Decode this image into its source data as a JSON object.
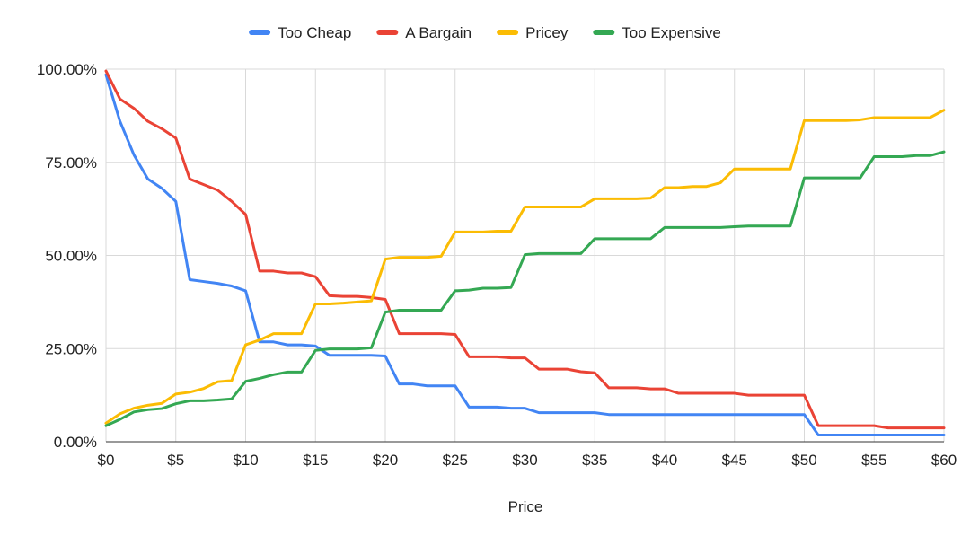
{
  "chart_data": {
    "type": "line",
    "title": "",
    "xlabel": "Price",
    "ylabel": "",
    "xlim": [
      0,
      60
    ],
    "ylim": [
      0,
      100
    ],
    "grid": true,
    "legend_position": "top-center",
    "x_ticks": [
      {
        "value": 0,
        "label": "$0"
      },
      {
        "value": 5,
        "label": "$5"
      },
      {
        "value": 10,
        "label": "$10"
      },
      {
        "value": 15,
        "label": "$15"
      },
      {
        "value": 20,
        "label": "$20"
      },
      {
        "value": 25,
        "label": "$25"
      },
      {
        "value": 30,
        "label": "$30"
      },
      {
        "value": 35,
        "label": "$35"
      },
      {
        "value": 40,
        "label": "$40"
      },
      {
        "value": 45,
        "label": "$45"
      },
      {
        "value": 50,
        "label": "$50"
      },
      {
        "value": 55,
        "label": "$55"
      },
      {
        "value": 60,
        "label": "$60"
      }
    ],
    "y_ticks": [
      {
        "value": 0,
        "label": "0.00%"
      },
      {
        "value": 25,
        "label": "25.00%"
      },
      {
        "value": 50,
        "label": "50.00%"
      },
      {
        "value": 75,
        "label": "75.00%"
      },
      {
        "value": 100,
        "label": "100.00%"
      }
    ],
    "x": [
      0,
      1,
      2,
      3,
      4,
      5,
      6,
      7,
      8,
      9,
      10,
      11,
      12,
      13,
      14,
      15,
      16,
      17,
      18,
      19,
      20,
      21,
      22,
      23,
      24,
      25,
      26,
      27,
      28,
      29,
      30,
      31,
      32,
      33,
      34,
      35,
      36,
      37,
      38,
      39,
      40,
      41,
      42,
      43,
      44,
      45,
      46,
      47,
      48,
      49,
      50,
      51,
      52,
      53,
      54,
      55,
      56,
      57,
      58,
      59,
      60
    ],
    "series": [
      {
        "name": "Too Cheap",
        "color": "#4285F4",
        "values": [
          98.5,
          86,
          77,
          70.5,
          68,
          64.5,
          43.5,
          43,
          42.5,
          41.8,
          40.5,
          26.8,
          26.8,
          26,
          26,
          25.7,
          23.2,
          23.2,
          23.2,
          23.2,
          23,
          15.5,
          15.5,
          15,
          15,
          15,
          9.3,
          9.3,
          9.3,
          9,
          9,
          7.8,
          7.8,
          7.8,
          7.8,
          7.8,
          7.3,
          7.3,
          7.3,
          7.3,
          7.3,
          7.3,
          7.3,
          7.3,
          7.3,
          7.3,
          7.3,
          7.3,
          7.3,
          7.3,
          7.3,
          1.8,
          1.8,
          1.8,
          1.8,
          1.8,
          1.8,
          1.8,
          1.8,
          1.8,
          1.8
        ]
      },
      {
        "name": "A Bargain",
        "color": "#EA4335",
        "values": [
          99.5,
          92,
          89.5,
          86,
          84,
          81.5,
          70.5,
          69,
          67.5,
          64.5,
          61,
          45.8,
          45.8,
          45.3,
          45.3,
          44.3,
          39.2,
          39,
          39,
          38.7,
          38.2,
          29,
          29,
          29,
          29,
          28.8,
          22.8,
          22.8,
          22.8,
          22.5,
          22.5,
          19.5,
          19.5,
          19.5,
          18.8,
          18.5,
          14.5,
          14.5,
          14.5,
          14.2,
          14.2,
          13,
          13,
          13,
          13,
          13,
          12.5,
          12.5,
          12.5,
          12.5,
          12.5,
          4.3,
          4.3,
          4.3,
          4.3,
          4.3,
          3.7,
          3.7,
          3.7,
          3.7,
          3.7
        ]
      },
      {
        "name": "Pricey",
        "color": "#FBBC04",
        "values": [
          5,
          7.5,
          9,
          9.8,
          10.3,
          12.8,
          13.3,
          14.3,
          16.1,
          16.4,
          26,
          27.3,
          29,
          29,
          29,
          37,
          37,
          37.2,
          37.5,
          37.8,
          49,
          49.5,
          49.5,
          49.5,
          49.8,
          56.3,
          56.3,
          56.3,
          56.5,
          56.5,
          63,
          63,
          63,
          63,
          63,
          65.2,
          65.2,
          65.2,
          65.2,
          65.4,
          68.2,
          68.2,
          68.5,
          68.5,
          69.5,
          73.2,
          73.2,
          73.2,
          73.2,
          73.2,
          86.2,
          86.2,
          86.2,
          86.2,
          86.4,
          87,
          87,
          87,
          87,
          87,
          89
        ]
      },
      {
        "name": "Too Expensive",
        "color": "#34A853",
        "values": [
          4.3,
          6,
          8,
          8.6,
          8.9,
          10.2,
          11,
          11,
          11.2,
          11.5,
          16.2,
          17,
          18,
          18.7,
          18.7,
          24.5,
          24.9,
          24.9,
          24.9,
          25.2,
          34.8,
          35.3,
          35.3,
          35.3,
          35.3,
          40.5,
          40.7,
          41.2,
          41.2,
          41.4,
          50.2,
          50.5,
          50.5,
          50.5,
          50.5,
          54.5,
          54.5,
          54.5,
          54.5,
          54.5,
          57.5,
          57.5,
          57.5,
          57.5,
          57.5,
          57.7,
          57.9,
          57.9,
          57.9,
          57.9,
          70.8,
          70.8,
          70.8,
          70.8,
          70.8,
          76.5,
          76.5,
          76.5,
          76.8,
          76.8,
          77.8
        ]
      }
    ]
  }
}
